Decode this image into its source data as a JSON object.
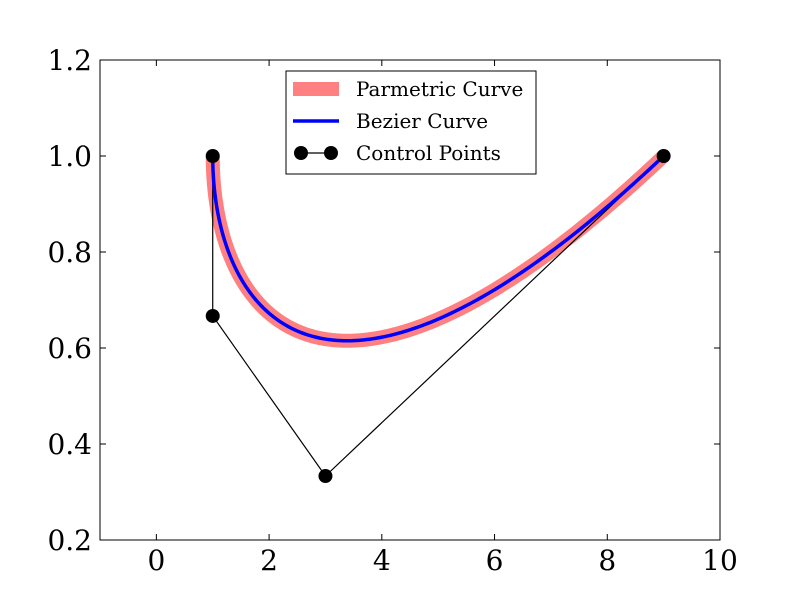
{
  "chart_data": {
    "type": "line",
    "title": "",
    "xlabel": "",
    "ylabel": "",
    "xlim": [
      -1,
      10
    ],
    "ylim": [
      0.2,
      1.2
    ],
    "x_ticks": [
      0,
      2,
      4,
      6,
      8,
      10
    ],
    "y_ticks": [
      0.2,
      0.4,
      0.6,
      0.8,
      1.0,
      1.2
    ],
    "x_tick_labels": [
      "0",
      "2",
      "4",
      "6",
      "8",
      "10"
    ],
    "y_tick_labels": [
      "0.2",
      "0.4",
      "0.6",
      "0.8",
      "1.0",
      "1.2"
    ],
    "grid": false,
    "legend_position": "top-center",
    "series": [
      {
        "name": "Parmetric Curve",
        "color": "#ff8080",
        "style": "thick-line",
        "control_points": [
          [
            1,
            1
          ],
          [
            1,
            0.6667
          ],
          [
            3,
            0.3333
          ],
          [
            9,
            1
          ]
        ]
      },
      {
        "name": "Bezier Curve",
        "color": "#0000ff",
        "style": "line",
        "control_points": [
          [
            1,
            1
          ],
          [
            1,
            0.6667
          ],
          [
            3,
            0.3333
          ],
          [
            9,
            1
          ]
        ]
      },
      {
        "name": "Control Points",
        "color": "#000000",
        "style": "line-markers",
        "points": [
          [
            1,
            1
          ],
          [
            1,
            0.6667
          ],
          [
            3,
            0.3333
          ],
          [
            9,
            1
          ]
        ]
      }
    ]
  }
}
